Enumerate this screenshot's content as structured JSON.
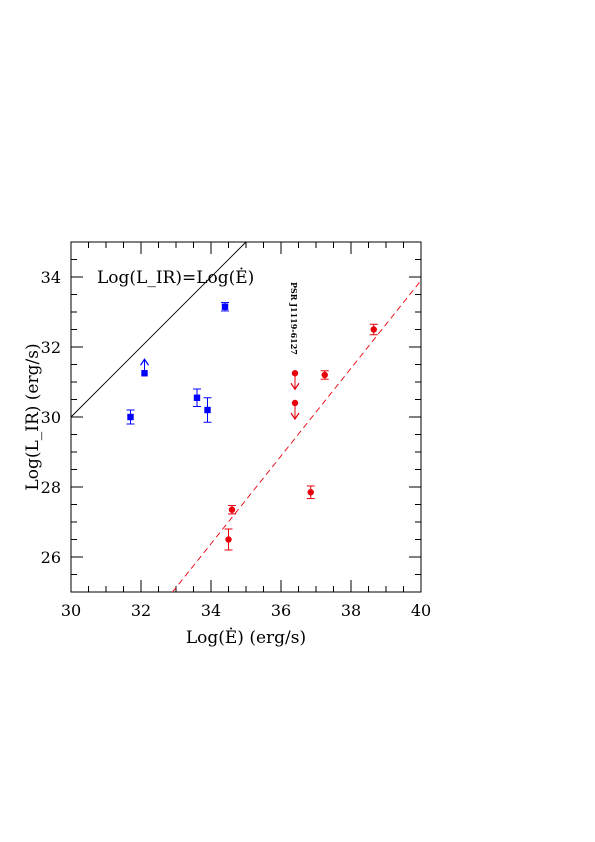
{
  "chart_data": {
    "type": "scatter",
    "title": "",
    "xlabel": "Log(Ė) (erg/s)",
    "ylabel": "Log(L_IR) (erg/s)",
    "xlim": [
      30,
      40
    ],
    "ylim": [
      25,
      35
    ],
    "x_ticks": [
      "30",
      "32",
      "34",
      "36",
      "38",
      "40"
    ],
    "y_ticks": [
      "26",
      "28",
      "30",
      "32",
      "34"
    ],
    "grid": false,
    "lines": [
      {
        "label": "Log(L_IR)=Log(Ė)",
        "style": "solid",
        "color": "#000000",
        "x": [
          30,
          35
        ],
        "y": [
          30,
          35
        ]
      },
      {
        "label": "",
        "style": "dashed",
        "color": "#e8000b",
        "x": [
          32.9,
          40
        ],
        "y": [
          25,
          33.9
        ]
      }
    ],
    "series": [
      {
        "marker": "square",
        "color": "#0000ff",
        "points": [
          {
            "x": 31.7,
            "y": 30.0,
            "yerr": 0.2,
            "limit": ""
          },
          {
            "x": 32.1,
            "y": 31.25,
            "yerr": 0,
            "limit": "lower"
          },
          {
            "x": 33.6,
            "y": 30.55,
            "yerr": 0.25,
            "limit": ""
          },
          {
            "x": 33.9,
            "y": 30.2,
            "yerr": 0.35,
            "limit": ""
          },
          {
            "x": 34.4,
            "y": 33.15,
            "yerr": 0.12,
            "limit": ""
          }
        ]
      },
      {
        "marker": "circle",
        "color": "#e8000b",
        "points": [
          {
            "x": 34.5,
            "y": 26.5,
            "yerr": 0.3,
            "limit": ""
          },
          {
            "x": 34.6,
            "y": 27.35,
            "yerr": 0.12,
            "limit": ""
          },
          {
            "x": 36.4,
            "y": 31.25,
            "yerr": 0,
            "limit": "upper"
          },
          {
            "x": 36.4,
            "y": 30.4,
            "yerr": 0,
            "limit": "upper"
          },
          {
            "x": 36.85,
            "y": 27.85,
            "yerr": 0.18,
            "limit": ""
          },
          {
            "x": 37.25,
            "y": 31.2,
            "yerr": 0.12,
            "limit": ""
          },
          {
            "x": 38.65,
            "y": 32.5,
            "yerr": 0.15,
            "limit": ""
          }
        ]
      }
    ],
    "annotations": [
      {
        "text": "PSR J1119-6127",
        "x": 36.45,
        "y": 31.5,
        "rotation": -90
      }
    ]
  }
}
